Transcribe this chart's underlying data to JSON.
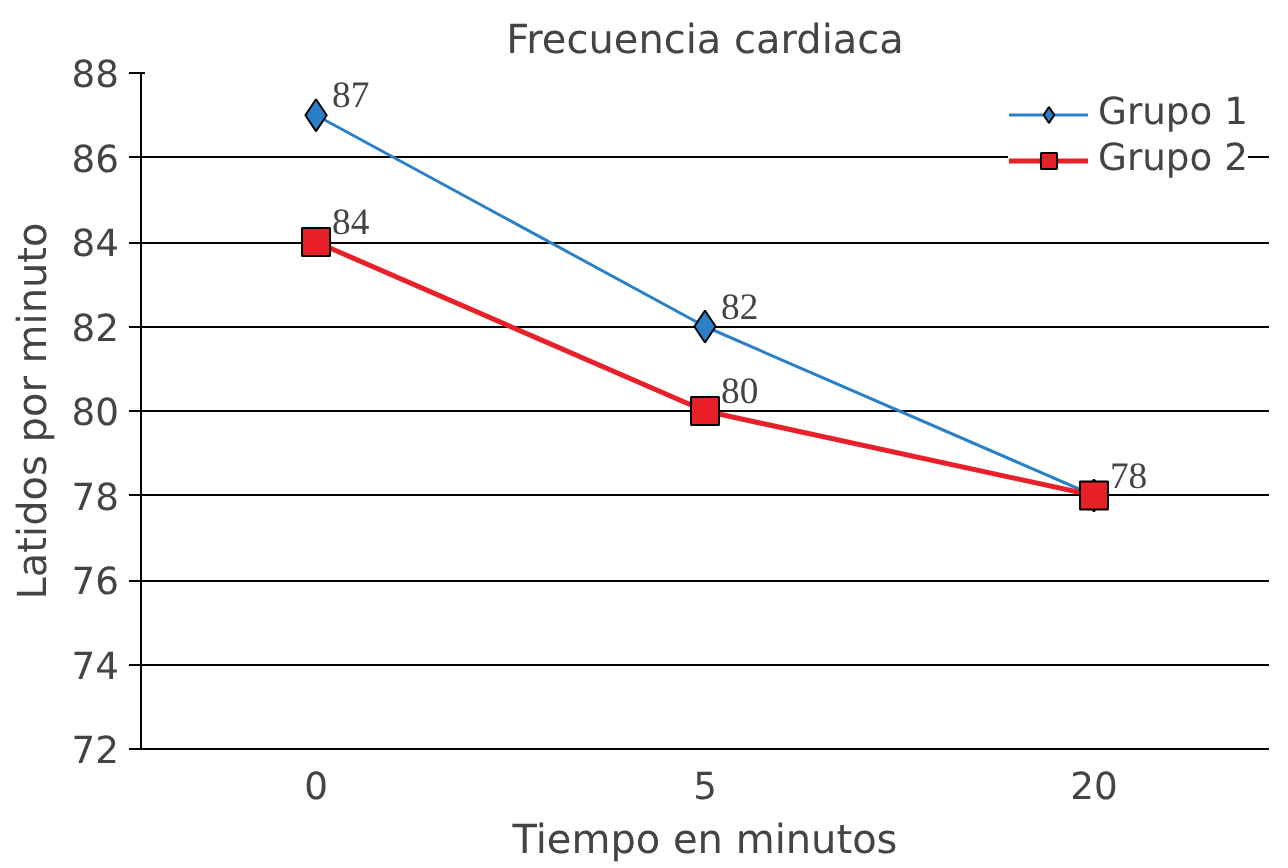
{
  "chart_data": {
    "type": "line",
    "title": "Frecuencia cardiaca",
    "xlabel": "Tiempo en minutos",
    "ylabel": "Latidos por minuto",
    "categories": [
      "0",
      "5",
      "20"
    ],
    "series": [
      {
        "name": "Grupo 1",
        "color": "#2a80c8",
        "marker": "diamond",
        "values": [
          87,
          82,
          78
        ],
        "value_labels": [
          "87",
          "82",
          null
        ]
      },
      {
        "name": "Grupo 2",
        "color": "#e8202a",
        "marker": "square",
        "values": [
          84,
          80,
          78
        ],
        "value_labels": [
          "84",
          "80",
          "78"
        ]
      }
    ],
    "ylim": [
      72,
      88
    ],
    "yticks": [
      72,
      74,
      76,
      78,
      80,
      82,
      84,
      86,
      88
    ],
    "grid": "y",
    "legend": "top right",
    "line_style": "solid"
  }
}
